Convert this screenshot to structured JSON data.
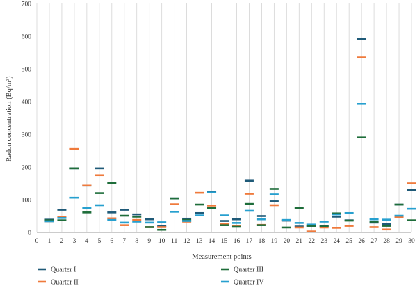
{
  "chart_data": {
    "type": "scatter",
    "xlabel": "Measurement points",
    "ylabel": "Radon concentration (Bq/m³)",
    "xlim": [
      0,
      30
    ],
    "ylim": [
      0,
      700
    ],
    "x_ticks": [
      0,
      1,
      2,
      3,
      4,
      5,
      6,
      7,
      8,
      9,
      10,
      11,
      12,
      13,
      14,
      15,
      16,
      17,
      18,
      19,
      20,
      21,
      22,
      23,
      24,
      25,
      26,
      27,
      28,
      29,
      30
    ],
    "y_ticks": [
      0,
      100,
      200,
      300,
      400,
      500,
      600,
      700
    ],
    "grid": "vertical",
    "legend": "bottom",
    "marker": "horizontal-dash",
    "series": [
      {
        "name": "Quarter I",
        "color": "#1f5a78",
        "values": [
          39,
          69,
          196,
          143,
          196,
          61,
          69,
          55,
          40,
          19,
          104,
          42,
          59,
          124,
          35,
          40,
          158,
          50,
          95,
          36,
          18,
          20,
          19,
          48,
          37,
          592,
          30,
          25,
          85,
          130
        ]
      },
      {
        "name": "Quarter II",
        "color": "#ef7a3c",
        "values": [
          34,
          48,
          255,
          143,
          175,
          43,
          22,
          38,
          16,
          16,
          86,
          33,
          121,
          82,
          26,
          19,
          118,
          23,
          83,
          37,
          15,
          3,
          15,
          14,
          20,
          535,
          16,
          9,
          47,
          150
        ]
      },
      {
        "name": "Quarter III",
        "color": "#1e6d3a",
        "values": [
          37,
          37,
          196,
          61,
          120,
          151,
          51,
          48,
          16,
          8,
          104,
          38,
          85,
          74,
          22,
          17,
          87,
          22,
          133,
          15,
          75,
          20,
          18,
          58,
          36,
          290,
          33,
          20,
          85,
          37
        ]
      },
      {
        "name": "Quarter IV",
        "color": "#27a0cf",
        "values": [
          34,
          44,
          106,
          75,
          83,
          38,
          30,
          33,
          30,
          31,
          63,
          35,
          52,
          122,
          52,
          29,
          66,
          40,
          116,
          38,
          29,
          24,
          33,
          55,
          59,
          393,
          40,
          39,
          51,
          72
        ]
      }
    ]
  }
}
